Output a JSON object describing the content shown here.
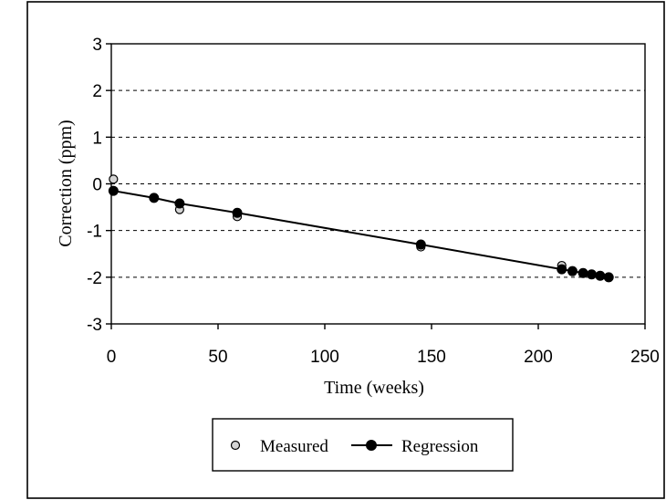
{
  "chart_data": {
    "type": "scatter",
    "title": "",
    "xlabel": "Time (weeks)",
    "ylabel": "Correction (ppm)",
    "xlim": [
      0,
      250
    ],
    "ylim": [
      -3,
      3
    ],
    "xticks": [
      "0",
      "50",
      "100",
      "150",
      "200",
      "250"
    ],
    "yticks": [
      "3",
      "2",
      "1",
      "0",
      "-1",
      "-2",
      "-3"
    ],
    "grid": "horizontal dashed",
    "legend_position": "bottom-center",
    "series": [
      {
        "name": "Measured",
        "style": "open-circle-gray",
        "x": [
          1,
          32,
          59,
          145,
          211
        ],
        "y": [
          0.1,
          -0.55,
          -0.7,
          -1.35,
          -1.75
        ]
      },
      {
        "name": "Regression",
        "style": "filled-circle-line",
        "x": [
          1,
          20,
          32,
          59,
          145,
          211,
          216,
          221,
          225,
          229,
          233
        ],
        "y": [
          -0.15,
          -0.3,
          -0.42,
          -0.62,
          -1.3,
          -1.83,
          -1.87,
          -1.91,
          -1.94,
          -1.97,
          -2.0
        ]
      }
    ]
  }
}
